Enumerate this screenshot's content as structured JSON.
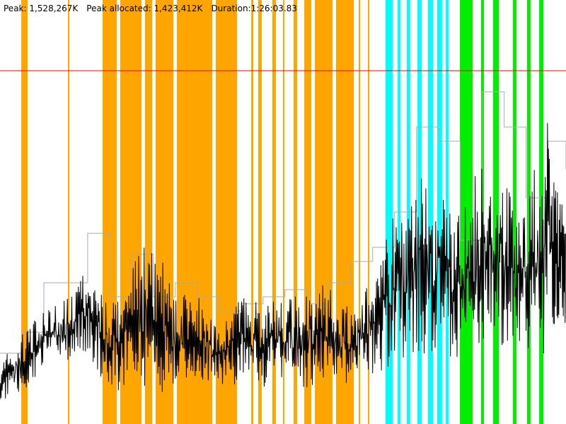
{
  "header": {
    "peak_label": "Peak: 1,528,267K",
    "peak_allocated_label": "Peak allocated: 1,423,412K",
    "duration_label": "Duration:1:26:03.83"
  },
  "colors": {
    "band_orange": "#ffa500",
    "band_cyan": "#00ffff",
    "band_green": "#00ee00",
    "peak_line": "#ff0000",
    "allocated_line": "#aaaaaa",
    "used_line": "#000000"
  },
  "chart_data": {
    "type": "line",
    "title": "",
    "xlabel": "",
    "ylabel": "",
    "x_unit": "seconds",
    "y_unit": "K",
    "xlim": [
      0,
      5164
    ],
    "ylim": [
      0,
      1833920
    ],
    "grid": false,
    "peak_line_value": 1528267,
    "x": [
      0,
      200,
      400,
      600,
      800,
      1000,
      1200,
      1400,
      1600,
      1800,
      2000,
      2200,
      2400,
      2600,
      2800,
      3000,
      3200,
      3400,
      3600,
      3800,
      4000,
      4200,
      4400,
      4600,
      4800,
      5000,
      5164
    ],
    "series": [
      {
        "key": "allocated",
        "color": "#aaaaaa",
        "values": [
          306000,
          397000,
          611000,
          611000,
          825000,
          550000,
          734000,
          550000,
          611000,
          550000,
          489000,
          520000,
          550000,
          581000,
          520000,
          611000,
          703000,
          764000,
          917000,
          1284000,
          1223000,
          795000,
          1437000,
          1284000,
          978000,
          1223000,
          1100000
        ]
      },
      {
        "key": "used",
        "color": "#000000",
        "ranges": [
          [
            107000,
            260000
          ],
          [
            107000,
            397000
          ],
          [
            245000,
            489000
          ],
          [
            275000,
            550000
          ],
          [
            306000,
            672000
          ],
          [
            138000,
            520000
          ],
          [
            153000,
            703000
          ],
          [
            122000,
            825000
          ],
          [
            153000,
            550000
          ],
          [
            183000,
            581000
          ],
          [
            168000,
            428000
          ],
          [
            168000,
            550000
          ],
          [
            153000,
            520000
          ],
          [
            183000,
            550000
          ],
          [
            153000,
            581000
          ],
          [
            153000,
            611000
          ],
          [
            183000,
            489000
          ],
          [
            214000,
            672000
          ],
          [
            245000,
            917000
          ],
          [
            275000,
            1100000
          ],
          [
            306000,
            1009000
          ],
          [
            275000,
            917000
          ],
          [
            306000,
            1192000
          ],
          [
            306000,
            1100000
          ],
          [
            275000,
            978000
          ],
          [
            306000,
            1314000
          ],
          [
            397000,
            947000
          ]
        ]
      }
    ],
    "event_bands": [
      {
        "color": "#ffa500",
        "ranges": [
          [
            194,
            252
          ],
          [
            620,
            633
          ],
          [
            936,
            1065
          ],
          [
            1097,
            1291
          ],
          [
            1323,
            1388
          ],
          [
            1420,
            1582
          ],
          [
            1614,
            1937
          ],
          [
            1969,
            2162
          ],
          [
            2292,
            2311
          ],
          [
            2356,
            2388
          ],
          [
            2485,
            2517
          ],
          [
            2582,
            2595
          ],
          [
            2679,
            2711
          ],
          [
            2776,
            2840
          ],
          [
            2873,
            3034
          ],
          [
            3066,
            3228
          ],
          [
            3273,
            3286
          ],
          [
            3357,
            3370
          ]
        ]
      },
      {
        "color": "#00ffff",
        "ranges": [
          [
            3518,
            3583
          ],
          [
            3628,
            3654
          ],
          [
            3712,
            3744
          ],
          [
            3808,
            3847
          ],
          [
            3905,
            3951
          ],
          [
            3989,
            4034
          ],
          [
            4067,
            4093
          ]
        ]
      },
      {
        "color": "#00ee00",
        "ranges": [
          [
            4196,
            4312
          ],
          [
            4389,
            4415
          ],
          [
            4499,
            4551
          ],
          [
            4680,
            4712
          ],
          [
            4809,
            4841
          ],
          [
            4919,
            4958
          ]
        ]
      }
    ]
  }
}
